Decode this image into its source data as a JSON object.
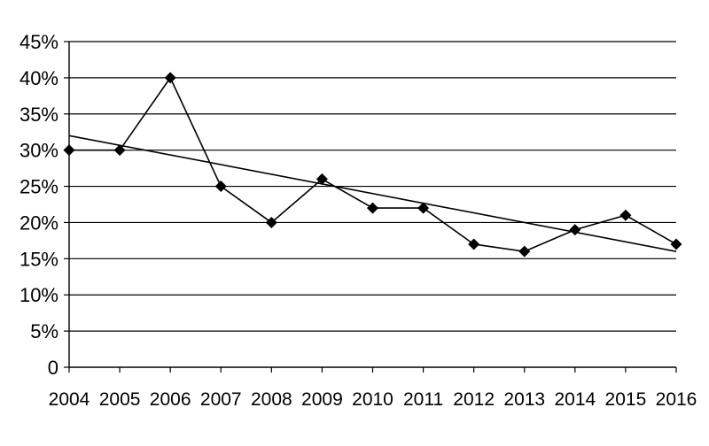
{
  "chart_data": {
    "type": "line",
    "title": "",
    "xlabel": "",
    "ylabel": "",
    "x": [
      2004,
      2005,
      2006,
      2007,
      2008,
      2009,
      2010,
      2011,
      2012,
      2013,
      2014,
      2015,
      2016
    ],
    "x_tick_labels": [
      "2004",
      "2005",
      "2006",
      "2007",
      "2008",
      "2009",
      "2010",
      "2011",
      "2012",
      "2013",
      "2014",
      "2015",
      "2016"
    ],
    "ylim": [
      0,
      0.45
    ],
    "y_ticks": [
      0,
      0.05,
      0.1,
      0.15,
      0.2,
      0.25,
      0.3,
      0.35,
      0.4,
      0.45
    ],
    "y_tick_labels": [
      "0",
      "5%",
      "10%",
      "15%",
      "20%",
      "25%",
      "30%",
      "35%",
      "40%",
      "45%"
    ],
    "grid": "horizontal",
    "legend": "none",
    "series": [
      {
        "marker": "diamond",
        "color": "#000000",
        "values": [
          0.3,
          0.3,
          0.4,
          0.25,
          0.2,
          0.26,
          0.22,
          0.22,
          0.17,
          0.16,
          0.19,
          0.21,
          0.17
        ]
      }
    ],
    "trendline": {
      "type": "linear",
      "color": "#000000",
      "start": [
        2004,
        0.32
      ],
      "end": [
        2016,
        0.16
      ]
    }
  }
}
